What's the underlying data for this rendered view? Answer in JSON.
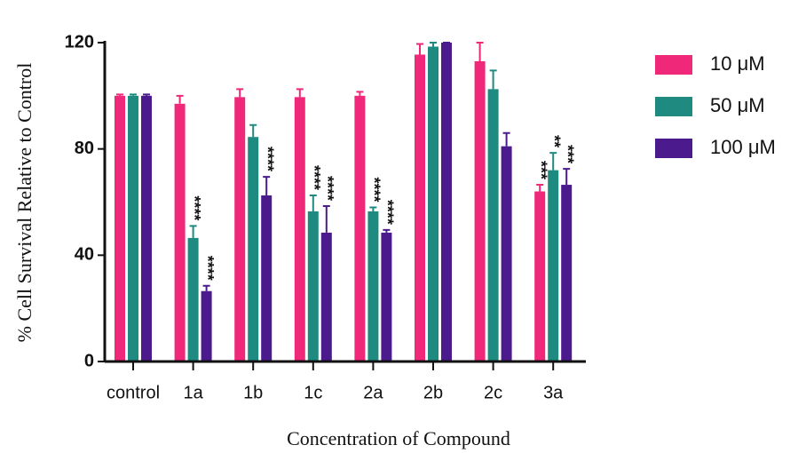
{
  "chart_data": {
    "type": "bar",
    "x_label": "Concentration of Compound",
    "y_label": "% Cell Survival Relative to Control",
    "categories": [
      "control",
      "1a",
      "1b",
      "1c",
      "2a",
      "2b",
      "2c",
      "3a"
    ],
    "ylim": [
      0,
      120
    ],
    "yticks": [
      0,
      40,
      80,
      120
    ],
    "series": [
      {
        "name": "10 μM",
        "color": "#f0287a",
        "values": [
          100,
          97,
          99.5,
          99.5,
          100,
          115.5,
          113,
          64
        ],
        "errors": [
          0.5,
          3,
          3,
          3,
          1.5,
          4,
          7,
          2.5
        ],
        "significance": [
          null,
          null,
          null,
          null,
          null,
          null,
          null,
          "***"
        ]
      },
      {
        "name": "50 μM",
        "color": "#1f8a80",
        "values": [
          100,
          46.5,
          84.5,
          56.5,
          56.5,
          118.5,
          102.5,
          72
        ],
        "errors": [
          0.5,
          4.5,
          4.5,
          6,
          1.5,
          1.5,
          7,
          6.5
        ],
        "significance": [
          null,
          "****",
          null,
          "****",
          "****",
          null,
          null,
          "**"
        ]
      },
      {
        "name": "100 μM",
        "color": "#4b1a8c",
        "values": [
          100,
          26.5,
          62.5,
          48.5,
          48.5,
          120,
          81,
          66.5
        ],
        "errors": [
          0.5,
          2,
          7,
          10,
          1,
          0,
          5,
          6
        ],
        "significance": [
          null,
          "****",
          "****",
          "****",
          "****",
          null,
          null,
          "***"
        ]
      }
    ]
  }
}
